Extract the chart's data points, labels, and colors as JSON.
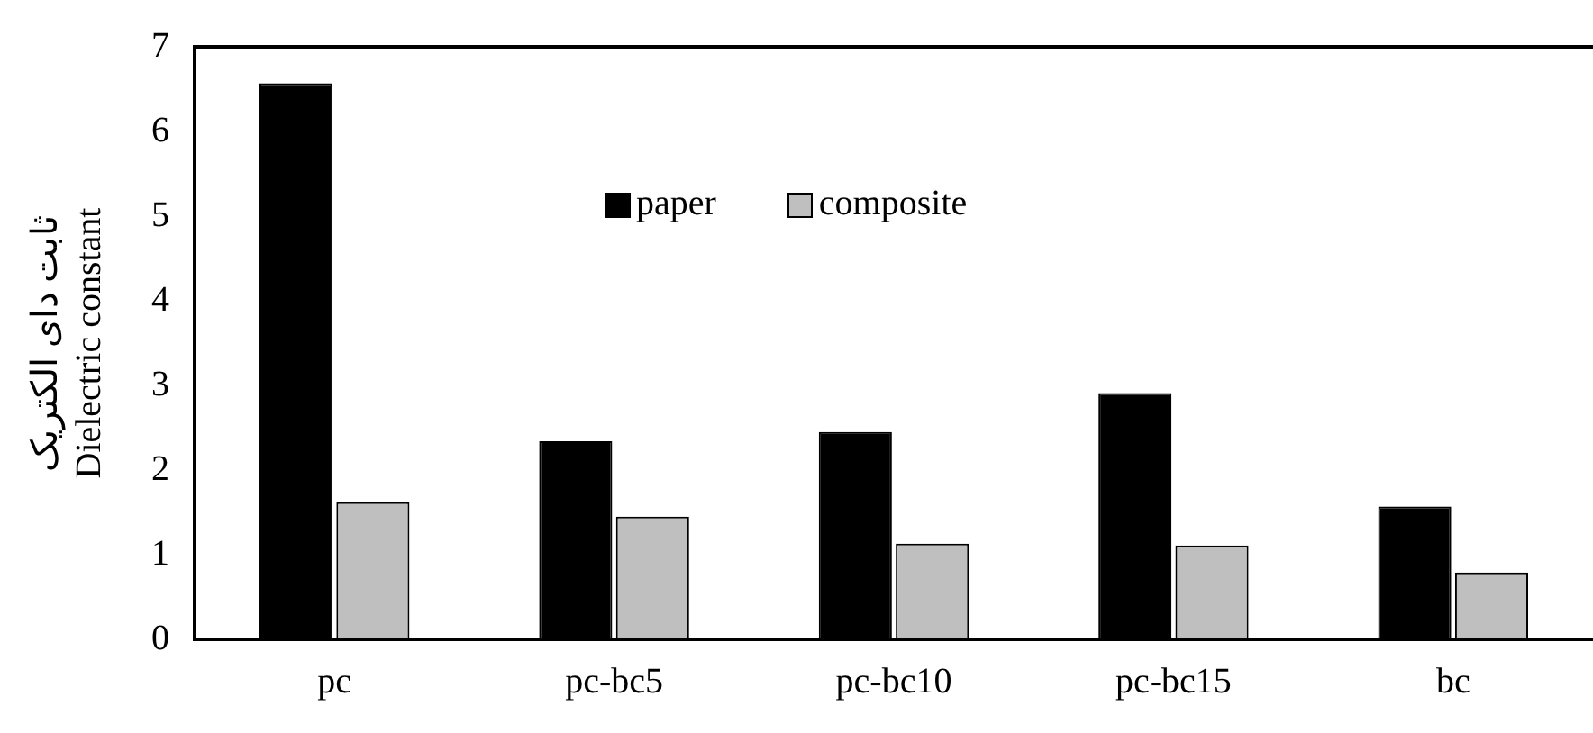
{
  "chart_data": {
    "type": "bar",
    "ylabel": "ثابت دای الکتریک\nDielectric constant",
    "categories": [
      "pc",
      "pc-bc5",
      "pc-bc10",
      "pc-bc15",
      "bc"
    ],
    "series": [
      {
        "name": "paper",
        "color": "#000000",
        "values": [
          6.57,
          2.34,
          2.45,
          2.91,
          1.57
        ]
      },
      {
        "name": "composite",
        "color": "#bfbfbf",
        "values": [
          1.62,
          1.45,
          1.13,
          1.11,
          0.79
        ]
      }
    ],
    "ylim": [
      0,
      7
    ],
    "yticks": [
      0,
      1,
      2,
      3,
      4,
      5,
      6,
      7
    ],
    "grid": false,
    "legend": "top"
  }
}
